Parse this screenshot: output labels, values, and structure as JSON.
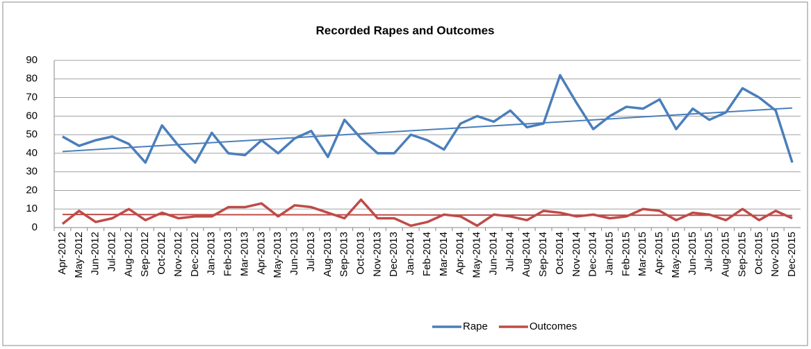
{
  "chart_data": {
    "type": "line",
    "title": "Recorded Rapes and Outcomes",
    "categories": [
      "Apr-2012",
      "May-2012",
      "Jun-2012",
      "Jul-2012",
      "Aug-2012",
      "Sep-2012",
      "Oct-2012",
      "Nov-2012",
      "Dec-2012",
      "Jan-2013",
      "Feb-2013",
      "Mar-2013",
      "Apr-2013",
      "May-2013",
      "Jun-2013",
      "Jul-2013",
      "Aug-2013",
      "Sep-2013",
      "Oct-2013",
      "Nov-2013",
      "Dec-2013",
      "Jan-2014",
      "Feb-2014",
      "Mar-2014",
      "Apr-2014",
      "May-2014",
      "Jun-2014",
      "Jul-2014",
      "Aug-2014",
      "Sep-2014",
      "Oct-2014",
      "Nov-2014",
      "Dec-2014",
      "Jan-2015",
      "Feb-2015",
      "Mar-2015",
      "Apr-2015",
      "May-2015",
      "Jun-2015",
      "Jul-2015",
      "Aug-2015",
      "Sep-2015",
      "Oct-2015",
      "Nov-2015",
      "Dec-2015"
    ],
    "series": [
      {
        "name": "Rape",
        "color": "#4a7ebb",
        "values": [
          49,
          44,
          47,
          49,
          45,
          35,
          55,
          44,
          35,
          51,
          40,
          39,
          47,
          40,
          48,
          52,
          38,
          58,
          48,
          40,
          40,
          50,
          47,
          42,
          56,
          60,
          57,
          63,
          54,
          56,
          82,
          67,
          53,
          60,
          65,
          64,
          69,
          53,
          64,
          58,
          62,
          75,
          70,
          63,
          35
        ]
      },
      {
        "name": "Outcomes",
        "color": "#be4b48",
        "values": [
          2,
          9,
          3,
          5,
          10,
          4,
          8,
          5,
          6,
          6,
          11,
          11,
          13,
          6,
          12,
          11,
          8,
          5,
          15,
          5,
          5,
          1,
          3,
          7,
          6,
          1,
          7,
          6,
          4,
          9,
          8,
          6,
          7,
          5,
          6,
          10,
          9,
          4,
          8,
          7,
          4,
          10,
          4,
          9,
          5
        ]
      }
    ],
    "trendline": true,
    "ylim": [
      0,
      90
    ],
    "yticks": [
      0,
      10,
      20,
      30,
      40,
      50,
      60,
      70,
      80,
      90
    ],
    "grid": true,
    "legend": "bottom"
  }
}
